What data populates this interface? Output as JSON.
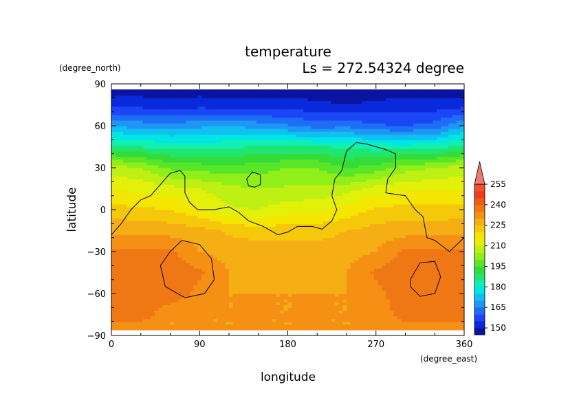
{
  "chart_data": {
    "type": "heatmap",
    "title": "temperature",
    "subtitle": "Ls = 272.54324 degree",
    "xlabel": "longitude",
    "ylabel": "latitude",
    "x_units": "(degree_east)",
    "y_units": "(degree_north)",
    "xlim": [
      0,
      360
    ],
    "ylim": [
      -90,
      90
    ],
    "x_ticks": [
      "0",
      "90",
      "180",
      "270",
      "360"
    ],
    "y_ticks": [
      "90",
      "60",
      "30",
      "0",
      "−30",
      "−60",
      "−90"
    ],
    "colorbar": {
      "levels": [
        145,
        150,
        155,
        160,
        165,
        170,
        175,
        180,
        185,
        190,
        195,
        200,
        205,
        210,
        215,
        220,
        225,
        230,
        235,
        240,
        245,
        250,
        255,
        260
      ],
      "labels": [
        "150",
        "165",
        "180",
        "195",
        "210",
        "225",
        "240",
        "255"
      ],
      "colors": [
        "#0a14a0",
        "#0a28dc",
        "#1a46f5",
        "#1e6ef5",
        "#1e96f5",
        "#10c0f0",
        "#00e6e6",
        "#10f0b4",
        "#20e670",
        "#34dc3a",
        "#5ae628",
        "#90ef18",
        "#bef014",
        "#e2f00a",
        "#f5e600",
        "#f5c80a",
        "#f5ae14",
        "#f59014",
        "#f07814",
        "#f05a14",
        "#ef3c1e",
        "#f0502d",
        "#f0786e"
      ]
    },
    "field_grid": {
      "lon": [
        0,
        30,
        60,
        90,
        120,
        150,
        180,
        210,
        240,
        270,
        300,
        330,
        360
      ],
      "lat": [
        -85,
        -75,
        -60,
        -45,
        -30,
        -15,
        0,
        15,
        30,
        45,
        60,
        75,
        85
      ],
      "temperature": [
        [
          230,
          230,
          230,
          230,
          230,
          230,
          230,
          230,
          230,
          230,
          230,
          230,
          230
        ],
        [
          239,
          239,
          230,
          230,
          230,
          230,
          230,
          230,
          230,
          230,
          239,
          239,
          239
        ],
        [
          239,
          239,
          239,
          233,
          230,
          230,
          230,
          230,
          230,
          233,
          239,
          239,
          239
        ],
        [
          239,
          239,
          239,
          236,
          230,
          228,
          228,
          228,
          230,
          236,
          239,
          239,
          239
        ],
        [
          236,
          236,
          236,
          230,
          228,
          227,
          227,
          227,
          228,
          230,
          236,
          236,
          236
        ],
        [
          229,
          229,
          228,
          227,
          224,
          223,
          223,
          223,
          225,
          227,
          228,
          228,
          229
        ],
        [
          222,
          221,
          220,
          216,
          211,
          210,
          213,
          214,
          217,
          221,
          222,
          222,
          222
        ],
        [
          214,
          214,
          212,
          210,
          207,
          205,
          206,
          206,
          208,
          212,
          214,
          214,
          214
        ],
        [
          208,
          205,
          199,
          198,
          197,
          198,
          200,
          200,
          195,
          197,
          203,
          205,
          208
        ],
        [
          187,
          185,
          184,
          183,
          184,
          186,
          186,
          186,
          184,
          183,
          183,
          183,
          187
        ],
        [
          170,
          168,
          167,
          169,
          170,
          168,
          166,
          163,
          164,
          161,
          160,
          162,
          170
        ],
        [
          153,
          153,
          152,
          153,
          152,
          152,
          152,
          151,
          150,
          151,
          152,
          152,
          153
        ],
        [
          148,
          148,
          148,
          148,
          148,
          148,
          148,
          148,
          148,
          148,
          148,
          148,
          148
        ]
      ]
    },
    "contours": [
      [
        [
          0,
          -18
        ],
        [
          10,
          -10
        ],
        [
          20,
          0
        ],
        [
          30,
          7
        ],
        [
          40,
          10
        ],
        [
          50,
          18
        ],
        [
          60,
          26
        ],
        [
          70,
          28
        ],
        [
          75,
          24
        ],
        [
          75,
          12
        ],
        [
          80,
          5
        ],
        [
          88,
          0
        ],
        [
          105,
          0
        ],
        [
          120,
          2
        ],
        [
          130,
          -2
        ],
        [
          140,
          -8
        ],
        [
          155,
          -12
        ],
        [
          170,
          -18
        ],
        [
          180,
          -16
        ],
        [
          190,
          -12
        ],
        [
          205,
          -12
        ],
        [
          215,
          -14
        ],
        [
          225,
          -8
        ],
        [
          230,
          0
        ],
        [
          225,
          10
        ],
        [
          228,
          22
        ],
        [
          235,
          28
        ],
        [
          240,
          42
        ],
        [
          250,
          48
        ],
        [
          260,
          47
        ],
        [
          280,
          43
        ],
        [
          290,
          40
        ],
        [
          290,
          30
        ],
        [
          282,
          22
        ],
        [
          280,
          12
        ],
        [
          300,
          10
        ],
        [
          310,
          0
        ],
        [
          318,
          -5
        ],
        [
          322,
          -20
        ],
        [
          330,
          -22
        ],
        [
          345,
          -30
        ],
        [
          360,
          -20
        ]
      ],
      [
        [
          138,
          22
        ],
        [
          144,
          27
        ],
        [
          152,
          25
        ],
        [
          152,
          18
        ],
        [
          146,
          16
        ],
        [
          140,
          17
        ],
        [
          138,
          22
        ]
      ],
      [
        [
          60,
          -30
        ],
        [
          72,
          -22
        ],
        [
          90,
          -25
        ],
        [
          102,
          -35
        ],
        [
          105,
          -50
        ],
        [
          95,
          -60
        ],
        [
          75,
          -63
        ],
        [
          55,
          -55
        ],
        [
          50,
          -40
        ],
        [
          60,
          -30
        ]
      ],
      [
        [
          305,
          -50
        ],
        [
          315,
          -38
        ],
        [
          330,
          -37
        ],
        [
          336,
          -48
        ],
        [
          330,
          -60
        ],
        [
          315,
          -62
        ],
        [
          305,
          -55
        ],
        [
          305,
          -50
        ]
      ]
    ]
  }
}
